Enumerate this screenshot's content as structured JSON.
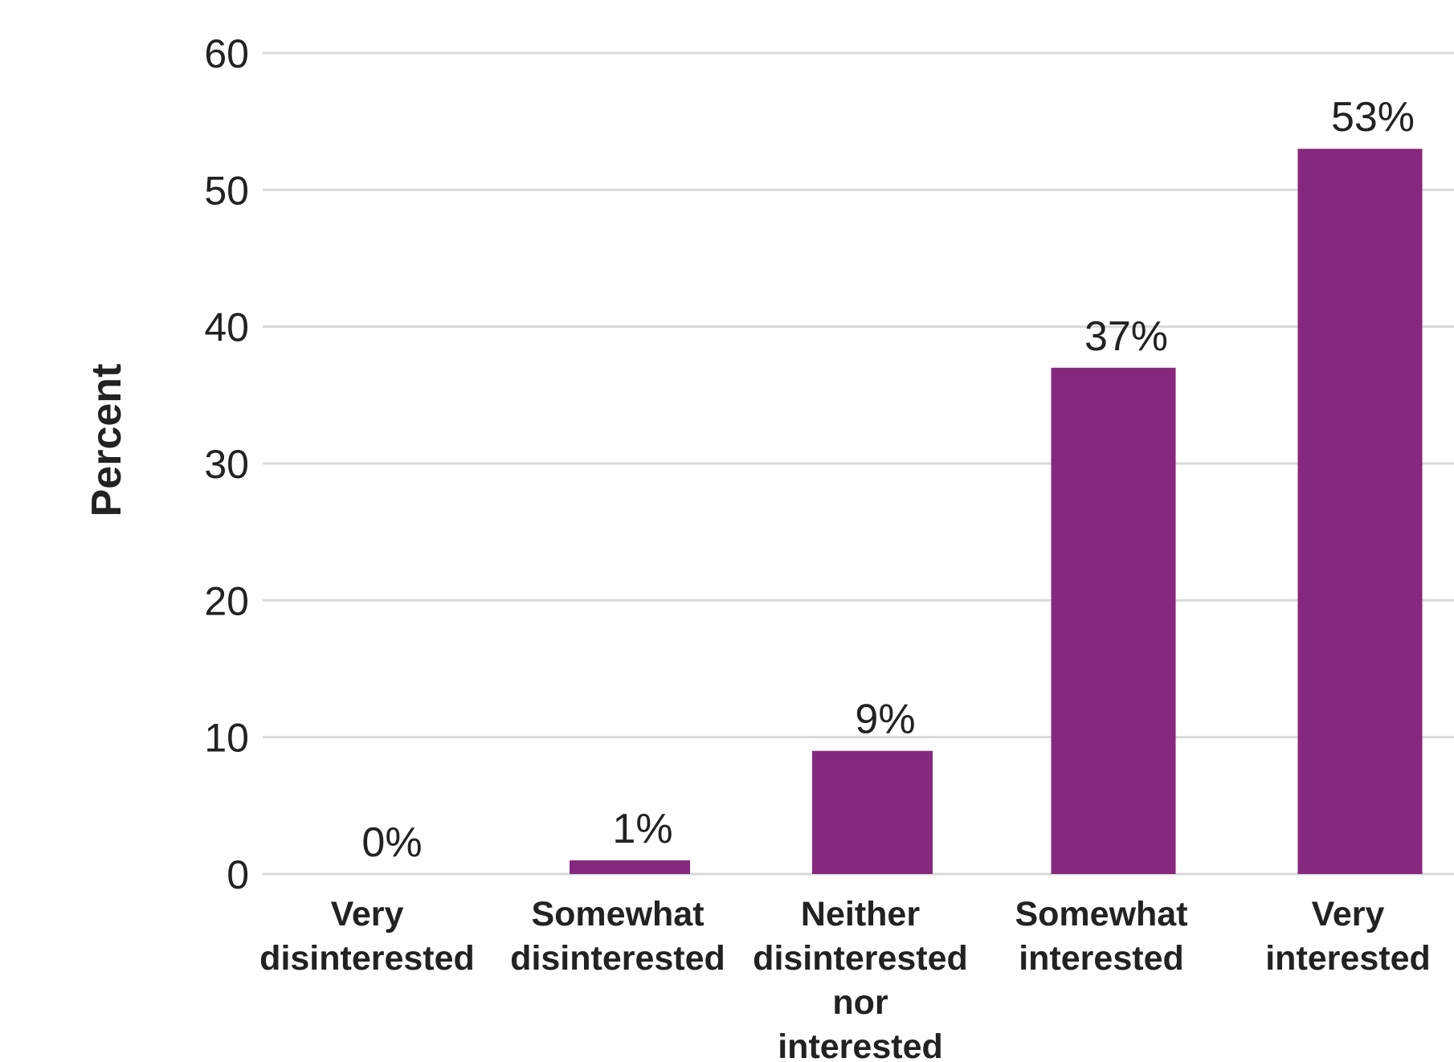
{
  "chart_data": {
    "type": "bar",
    "title": "",
    "ylabel": "Percent",
    "xlabel": "",
    "ylim": [
      0,
      60
    ],
    "yticks": [
      0,
      10,
      20,
      30,
      40,
      50,
      60
    ],
    "grid": true,
    "bar_color": "#86287e",
    "categories": [
      [
        "Very",
        "disinterested"
      ],
      [
        "Somewhat",
        "disinterested"
      ],
      [
        "Neither",
        "disinterested",
        "nor",
        "interested"
      ],
      [
        "Somewhat",
        "interested"
      ],
      [
        "Very",
        "interested"
      ]
    ],
    "values": [
      0,
      1,
      9,
      37,
      53
    ],
    "data_labels": [
      "0%",
      "1%",
      "9%",
      "37%",
      "53%"
    ]
  }
}
